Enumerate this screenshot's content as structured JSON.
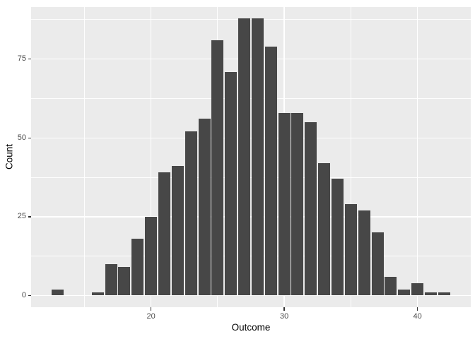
{
  "figure": {
    "description": "ggplot2-style histogram with grey panel, white gridlines and dark grey bars"
  },
  "colors": {
    "figure_background": "#FFFFFF",
    "panel_background": "#EBEBEB",
    "grid": "#FFFFFF",
    "bar_fill": "#474747",
    "tick_text": "#4D4D4D",
    "axis_title": "#000000",
    "tick_mark": "#333333"
  },
  "chart_data": {
    "type": "bar",
    "subtype": "histogram",
    "title": "",
    "xlabel": "Outcome",
    "ylabel": "Count",
    "binwidth": 1,
    "bin_centers": [
      13,
      14,
      15,
      16,
      17,
      18,
      19,
      20,
      21,
      22,
      23,
      24,
      25,
      26,
      27,
      28,
      29,
      30,
      31,
      32,
      33,
      34,
      35,
      36,
      37,
      38,
      39,
      40,
      41,
      42
    ],
    "counts": [
      2,
      0,
      0,
      1,
      10,
      9,
      18,
      25,
      39,
      41,
      52,
      56,
      81,
      71,
      88,
      88,
      79,
      58,
      58,
      55,
      42,
      37,
      29,
      27,
      20,
      6,
      2,
      4,
      1,
      1
    ],
    "xlim": [
      11,
      44
    ],
    "ylim": [
      -3.7,
      91.5
    ],
    "x_tick_values": [
      20,
      30,
      40
    ],
    "x_tick_labels": [
      "20",
      "30",
      "40"
    ],
    "x_minor_gridlines": [
      15,
      25,
      35
    ],
    "y_tick_values": [
      0,
      25,
      50,
      75
    ],
    "y_tick_labels": [
      "0",
      "25",
      "50",
      "75"
    ],
    "y_minor_gridlines": [
      12.5,
      37.5,
      62.5,
      87.5
    ],
    "grid": true,
    "legend_position": "none",
    "style": "ggplot2-grey"
  }
}
